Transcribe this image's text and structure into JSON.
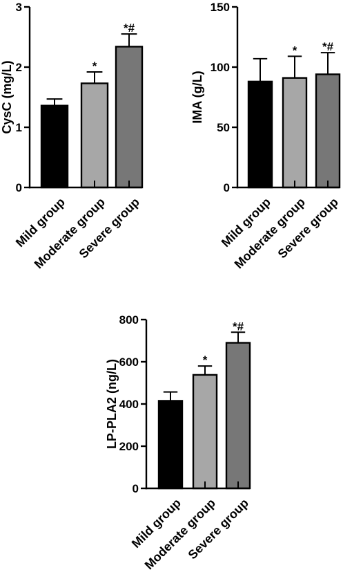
{
  "chart_data": [
    {
      "type": "bar",
      "categories": [
        "Mild group",
        "Moderate group",
        "Severe group"
      ],
      "values": [
        1.36,
        1.73,
        2.34
      ],
      "errors": [
        0.11,
        0.19,
        0.21
      ],
      "annotations": [
        "",
        "*",
        "*#"
      ],
      "ylabel": "CysC (mg/L)",
      "ylim": [
        0,
        3
      ],
      "yticks": [
        0,
        1,
        2,
        3
      ],
      "colors": [
        "#000000",
        "#a7a7a7",
        "#777777"
      ]
    },
    {
      "type": "bar",
      "categories": [
        "Mild group",
        "Moderate group",
        "Severe group"
      ],
      "values": [
        88,
        91,
        94
      ],
      "errors": [
        19,
        18,
        18
      ],
      "annotations": [
        "",
        "*",
        "*#"
      ],
      "ylabel": "IMA (g/L)",
      "ylim": [
        0,
        150
      ],
      "yticks": [
        0,
        50,
        100,
        150
      ],
      "colors": [
        "#000000",
        "#a7a7a7",
        "#777777"
      ]
    },
    {
      "type": "bar",
      "categories": [
        "Mild group",
        "Moderate group",
        "Severe group"
      ],
      "values": [
        415,
        538,
        690
      ],
      "errors": [
        42,
        42,
        50
      ],
      "annotations": [
        "",
        "*",
        "*#"
      ],
      "ylabel": "LP-PLA2 (ng/L)",
      "ylim": [
        0,
        800
      ],
      "yticks": [
        0,
        200,
        400,
        600,
        800
      ],
      "colors": [
        "#000000",
        "#a7a7a7",
        "#777777"
      ]
    }
  ]
}
